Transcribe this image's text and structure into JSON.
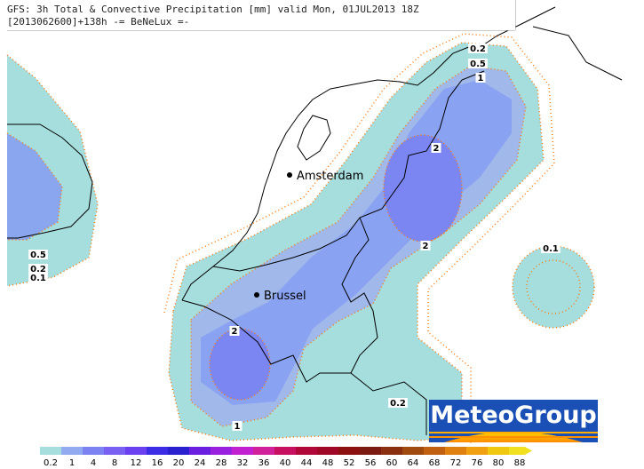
{
  "header": {
    "line1": "GFS: 3h Total & Convective Precipitation [mm] valid Mon, 01JUL2013 18Z",
    "line2": "[2013062600]+138h -= BeNeLux =-"
  },
  "places": [
    {
      "label": "Amsterdam"
    },
    {
      "label": "Brussel"
    }
  ],
  "contour_labels": [
    "0.2",
    "0.5",
    "1",
    "2",
    "2",
    "2",
    "1",
    "0.2",
    "0.1",
    "0.5",
    "0.2",
    "0.1"
  ],
  "legend": {
    "labels": [
      "0.2",
      "1",
      "4",
      "8",
      "12",
      "16",
      "20",
      "24",
      "28",
      "32",
      "36",
      "40",
      "44",
      "48",
      "52",
      "56",
      "60",
      "64",
      "68",
      "72",
      "76",
      "80",
      "88"
    ],
    "colors": [
      "#a6dede",
      "#92aaf0",
      "#7c82f2",
      "#7a60f2",
      "#6a40f0",
      "#3c2ce6",
      "#2a20d0",
      "#6a1ee0",
      "#9a20e0",
      "#c020d0",
      "#d0209a",
      "#c81060",
      "#b00838",
      "#a00828",
      "#8c1010",
      "#7a1a10",
      "#8a3010",
      "#a04a10",
      "#c06010",
      "#e08010",
      "#f0a010",
      "#f0c810",
      "#f0e020"
    ]
  },
  "logo": "MeteoGroup"
}
